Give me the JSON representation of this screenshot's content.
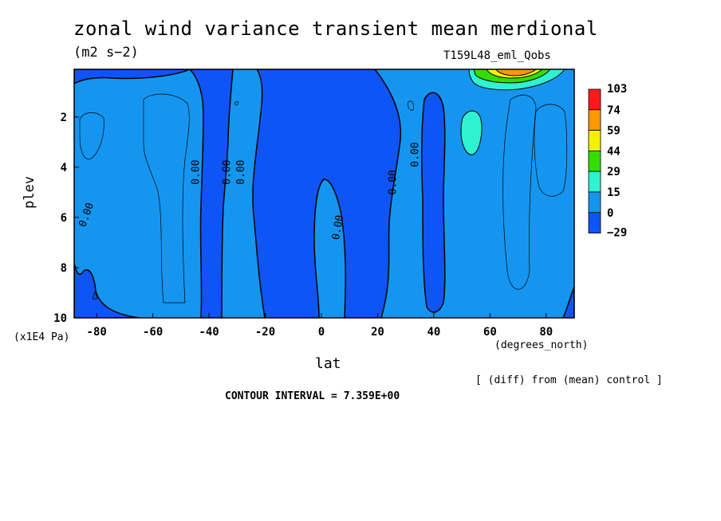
{
  "chart_data": {
    "type": "contour",
    "title": "zonal wind variance transient mean merdional",
    "units": "(m2 s−2)",
    "run_label": "T159L48_eml_Qobs",
    "xlabel": "lat",
    "x_units": "(degrees_north)",
    "ylabel": "plev",
    "y_units": "(x1E4 Pa)",
    "xlim": [
      -88,
      90
    ],
    "ylim": [
      10,
      0.1
    ],
    "x_ticks": [
      "-80",
      "-60",
      "-40",
      "-20",
      "0",
      "20",
      "40",
      "60",
      "80"
    ],
    "x_tick_values": [
      -80,
      -60,
      -40,
      -20,
      0,
      20,
      40,
      60,
      80
    ],
    "y_ticks": [
      "2",
      "4",
      "6",
      "8",
      "10"
    ],
    "y_tick_values": [
      2,
      4,
      6,
      8,
      10
    ],
    "contour_interval_label": "CONTOUR INTERVAL = 7.359E+00",
    "note": "[ (diff) from (mean) control ]",
    "contour_labels": [
      "0.00",
      "0.00",
      "0.00",
      "0.00",
      "0.00",
      "0.00",
      "0.00"
    ],
    "colorbar": {
      "levels": [
        "103",
        "74",
        "59",
        "44",
        "29",
        "15",
        "0",
        "−29"
      ],
      "colors": [
        "#ff1a1a",
        "#ff9900",
        "#f2f200",
        "#33dd00",
        "#2ef2d2",
        "#1496f0",
        "#0f55f5"
      ]
    }
  }
}
